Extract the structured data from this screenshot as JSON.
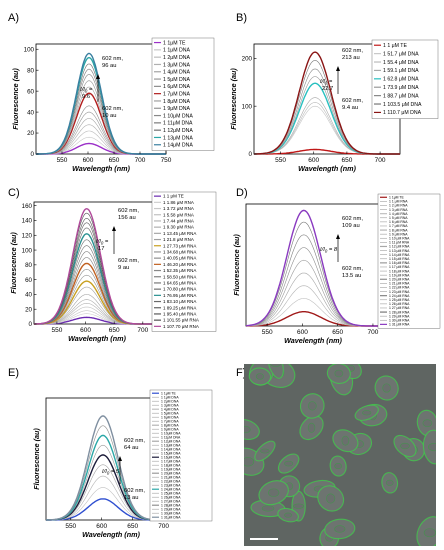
{
  "figure": {
    "panels": [
      {
        "letter": "A)",
        "ylabel": "Fluorescence (au)",
        "xlabel": "Wavelength (nm)",
        "xlim": [
          500,
          750
        ],
        "ylim": [
          0,
          105
        ],
        "xticks": [
          550,
          600,
          650,
          700,
          750
        ],
        "yticks": [
          0,
          20,
          40,
          60,
          80,
          100
        ],
        "annotations": {
          "top": [
            "602 nm,",
            "96 au"
          ],
          "ratio": [
            "I/I",
            "0",
            " ="
          ],
          "ratio_value": "9.6",
          "bottom": [
            "602 nm,",
            "10 au"
          ]
        },
        "legend": [
          "1 1μM TE",
          "1 1μM DNA",
          "1 2μM DNA",
          "1 3μM DNA",
          "1 4μM DNA",
          "1 5μM DNA",
          "1 6μM DNA",
          "1 7μM DNA",
          "1 8μM DNA",
          "1 9μM DNA",
          "1 10μM DNA",
          "1 11μM DNA",
          "1 12μM DNA",
          "1 13μM DNA",
          "1 14μM DNA"
        ]
      },
      {
        "letter": "B)",
        "ylabel": "Fluorescence (au)",
        "xlabel": "Wavelength (nm)",
        "xlim": [
          510,
          730
        ],
        "ylim": [
          0,
          230
        ],
        "xticks": [
          550,
          600,
          650,
          700
        ],
        "yticks": [
          0,
          100,
          200
        ],
        "annotations": {
          "top": [
            "602 nm,",
            "213 au"
          ],
          "ratio": [
            "I/I",
            "0",
            " ="
          ],
          "ratio_value": "22.7",
          "bottom": [
            "602 nm,",
            "9.4 au"
          ]
        },
        "legend": [
          "1 1 μM TE",
          "1 51.7 μM DNA",
          "1 55.4 μM DNA",
          "1 59.1 μM DNA",
          "1 62.8 μM DNA",
          "1 73.9 μM DNA",
          "1 88.7 μM DNA",
          "1 103.5 μM DNA",
          "1 110.7 μM DNA"
        ]
      },
      {
        "letter": "C)",
        "ylabel": "Fluorescence (au)",
        "xlabel": "Wavelength (nm)",
        "xlim": [
          510,
          730
        ],
        "ylim": [
          0,
          165
        ],
        "xticks": [
          550,
          600,
          650,
          700
        ],
        "yticks": [
          0,
          20,
          40,
          60,
          80,
          100,
          120,
          140,
          160
        ],
        "annotations": {
          "top": [
            "602 nm,",
            "156 au"
          ],
          "ratio": [
            "I/I",
            "0",
            " ="
          ],
          "ratio_value": "17",
          "bottom": [
            "602 nm,",
            "9 au"
          ]
        },
        "legend": [
          "1 1 μM TE",
          "1 1.86 μM RNA",
          "1 3.72 μM RNA",
          "1 5.58 μM RNA",
          "1 7.44 μM RNA",
          "1 9.30 μM RNA",
          "1 13.45 μM RNA",
          "1 21.8 μM RNA",
          "1 27.73 μM RNA",
          "1 34.68 μM RNA",
          "1 40.05 μM RNA",
          "1 46.20 μM RNA",
          "1 52.35 μM RNA",
          "1 58.50 μM RNA",
          "1 64.65 μM RNA",
          "1 70.80 μM RNA",
          "1 76.95 μM RNA",
          "1 83.10 μM RNA",
          "1 89.25 μM RNA",
          "1 95.40 μM RNA",
          "1 101.55 μM RNA",
          "1 107.70 μM RNA"
        ]
      },
      {
        "letter": "D)",
        "ylabel": "Fluorescence (au)",
        "xlabel": "Wavelength (nm)",
        "xlim": [
          520,
          710
        ],
        "ylim": [
          0,
          115
        ],
        "xticks": [
          550,
          600,
          650,
          700
        ],
        "yticks": [],
        "annotations": {
          "top": [
            "602 nm,",
            "109 au"
          ],
          "ratio": [
            "I/I",
            "0",
            " = 8"
          ],
          "ratio_value": "",
          "bottom": [
            "602 nm,",
            "13.5 au"
          ]
        },
        "legend": [
          "1 1μM TE",
          "1 1 μM RNA",
          "1 2 μM RNA",
          "1 3 μM RNA",
          "1 4 μM RNA",
          "1 5 μM RNA",
          "1 6 μM RNA",
          "1 7 μM RNA",
          "1 8 μM RNA",
          "1 9 μM RNA",
          "1 10 μM RNA",
          "1 11 μM RNA",
          "1 12 μM RNA",
          "1 13 μM RNA",
          "1 14 μM RNA",
          "1 15 μM RNA",
          "1 16 μM RNA",
          "1 17 μM RNA",
          "1 18 μM RNA",
          "1 19 μM RNA",
          "1 20 μM RNA",
          "1 21 μM RNA",
          "1 22 μM RNA",
          "1 23 μM RNA",
          "1 24 μM RNA",
          "1 25 μM RNA",
          "1 26 μM RNA",
          "1 27 μM RNA",
          "1 28 μM RNA",
          "1 29 μM RNA",
          "1 30 μM RNA",
          "1 31 μM RNA"
        ]
      },
      {
        "letter": "E)",
        "ylabel": "Fluorescence (au)",
        "xlabel": "Wavelength (nm)",
        "xlim": [
          510,
          720
        ],
        "ylim": [
          0,
          75
        ],
        "xticks": [
          550,
          600,
          650,
          700
        ],
        "yticks": [],
        "annotations": {
          "top": [
            "602 nm,",
            "64 au"
          ],
          "ratio": [
            "I/I",
            "0",
            " = 5"
          ],
          "ratio_value": "",
          "bottom": [
            "602 nm,",
            "13 au"
          ]
        },
        "legend": [
          "1 1μM TE",
          "1 1μM DNA",
          "1 2μM DNA",
          "1 3μM DNA",
          "1 4μM DNA",
          "1 5μM DNA",
          "1 6μM DNA",
          "1 7μM DNA",
          "1 8μM DNA",
          "1 9μM DNA",
          "1 10μM DNA",
          "1 11μM DNA",
          "1 12μM DNA",
          "1 13μM DNA",
          "1 14μM DNA",
          "1 15μM DNA",
          "1 16μM DNA",
          "1 17μM DNA",
          "1 18μM DNA",
          "1 19μM DNA",
          "1 20μM DNA",
          "1 21μM DNA",
          "1 22μM DNA",
          "1 23μM DNA",
          "1 24μM DNA",
          "1 25μM DNA",
          "1 26μM DNA",
          "1 27μM DNA",
          "1 28μM DNA",
          "1 29μM DNA",
          "1 30μM DNA",
          "1 31μM DNA"
        ]
      },
      {
        "letter": "F)"
      }
    ]
  },
  "chart_data": [
    {
      "type": "line",
      "peak_x": 602,
      "xlim": [
        500,
        750
      ],
      "ylim": [
        0,
        105
      ],
      "series": [
        {
          "legend_index": 0,
          "peak": 10,
          "color": "#9b30c8"
        },
        {
          "legend_index": 1,
          "peak": 16,
          "color": "#c8c8c8"
        },
        {
          "legend_index": 2,
          "peak": 22,
          "color": "#bcbcbc"
        },
        {
          "legend_index": 3,
          "peak": 28,
          "color": "#b0b0b0"
        },
        {
          "legend_index": 4,
          "peak": 34,
          "color": "#a4a4a4"
        },
        {
          "legend_index": 5,
          "peak": 40,
          "color": "#989898"
        },
        {
          "legend_index": 6,
          "peak": 46,
          "color": "#8c8c8c"
        },
        {
          "legend_index": 7,
          "peak": 58,
          "color": "#b21e1e"
        },
        {
          "legend_index": 8,
          "peak": 64,
          "color": "#a0a0a0"
        },
        {
          "legend_index": 9,
          "peak": 70,
          "color": "#949494"
        },
        {
          "legend_index": 10,
          "peak": 76,
          "color": "#888888"
        },
        {
          "legend_index": 11,
          "peak": 81,
          "color": "#7c7c7c"
        },
        {
          "legend_index": 12,
          "peak": 86,
          "color": "#707070"
        },
        {
          "legend_index": 13,
          "peak": 92,
          "color": "#2aa7a7"
        },
        {
          "legend_index": 14,
          "peak": 96,
          "color": "#3a7fa0"
        }
      ]
    },
    {
      "type": "line",
      "peak_x": 602,
      "xlim": [
        510,
        730
      ],
      "ylim": [
        0,
        230
      ],
      "series": [
        {
          "legend_index": 0,
          "peak": 9.4,
          "color": "#c01818"
        },
        {
          "legend_index": 1,
          "peak": 100,
          "color": "#c8c8c8"
        },
        {
          "legend_index": 2,
          "peak": 108,
          "color": "#bbbbbb"
        },
        {
          "legend_index": 3,
          "peak": 118,
          "color": "#aaaaaa"
        },
        {
          "legend_index": 4,
          "peak": 148,
          "color": "#28c0c0"
        },
        {
          "legend_index": 5,
          "peak": 162,
          "color": "#999999"
        },
        {
          "legend_index": 6,
          "peak": 178,
          "color": "#888888"
        },
        {
          "legend_index": 7,
          "peak": 196,
          "color": "#777777"
        },
        {
          "legend_index": 8,
          "peak": 213,
          "color": "#8a1414"
        }
      ]
    },
    {
      "type": "line",
      "peak_x": 602,
      "xlim": [
        510,
        730
      ],
      "ylim": [
        0,
        165
      ],
      "series": [
        {
          "legend_index": 0,
          "peak": 9,
          "color": "#6a2ab0"
        },
        {
          "legend_index": 1,
          "peak": 14,
          "color": "#d0d0d0"
        },
        {
          "legend_index": 2,
          "peak": 18,
          "color": "#c8c8c8"
        },
        {
          "legend_index": 3,
          "peak": 23,
          "color": "#c0c0c0"
        },
        {
          "legend_index": 4,
          "peak": 28,
          "color": "#b8b8b8"
        },
        {
          "legend_index": 5,
          "peak": 33,
          "color": "#b0b0b0"
        },
        {
          "legend_index": 6,
          "peak": 40,
          "color": "#a8a8a8"
        },
        {
          "legend_index": 7,
          "peak": 50,
          "color": "#a0a0a0"
        },
        {
          "legend_index": 8,
          "peak": 58,
          "color": "#c8a020"
        },
        {
          "legend_index": 9,
          "peak": 66,
          "color": "#989898"
        },
        {
          "legend_index": 10,
          "peak": 74,
          "color": "#909090"
        },
        {
          "legend_index": 11,
          "peak": 82,
          "color": "#c06020"
        },
        {
          "legend_index": 12,
          "peak": 90,
          "color": "#888888"
        },
        {
          "legend_index": 13,
          "peak": 98,
          "color": "#808080"
        },
        {
          "legend_index": 14,
          "peak": 106,
          "color": "#787878"
        },
        {
          "legend_index": 15,
          "peak": 114,
          "color": "#707070"
        },
        {
          "legend_index": 16,
          "peak": 122,
          "color": "#289090"
        },
        {
          "legend_index": 17,
          "peak": 130,
          "color": "#686868"
        },
        {
          "legend_index": 18,
          "peak": 137,
          "color": "#606060"
        },
        {
          "legend_index": 19,
          "peak": 143,
          "color": "#585858"
        },
        {
          "legend_index": 20,
          "peak": 150,
          "color": "#505050"
        },
        {
          "legend_index": 21,
          "peak": 156,
          "color": "#b04a9a"
        }
      ]
    },
    {
      "type": "line",
      "peak_x": 602,
      "xlim": [
        520,
        710
      ],
      "ylim": [
        0,
        115
      ],
      "series": [
        {
          "legend_index": 0,
          "peak": 13.5,
          "color": "#a01818"
        },
        {
          "legend_index": 4,
          "peak": 26,
          "color": "#c0c0c0"
        },
        {
          "legend_index": 8,
          "peak": 38,
          "color": "#b4b4b4"
        },
        {
          "legend_index": 12,
          "peak": 50,
          "color": "#a8a8a8"
        },
        {
          "legend_index": 16,
          "peak": 62,
          "color": "#9c9c9c"
        },
        {
          "legend_index": 20,
          "peak": 74,
          "color": "#909090"
        },
        {
          "legend_index": 24,
          "peak": 86,
          "color": "#848484"
        },
        {
          "legend_index": 28,
          "peak": 98,
          "color": "#787878"
        },
        {
          "legend_index": 31,
          "peak": 109,
          "color": "#8a3ac0"
        }
      ]
    },
    {
      "type": "line",
      "peak_x": 602,
      "xlim": [
        510,
        720
      ],
      "ylim": [
        0,
        75
      ],
      "series": [
        {
          "legend_index": 0,
          "peak": 13,
          "color": "#2f4fd0"
        },
        {
          "legend_index": 4,
          "peak": 20,
          "color": "#c0c0c0"
        },
        {
          "legend_index": 8,
          "peak": 27,
          "color": "#b4b4b4"
        },
        {
          "legend_index": 12,
          "peak": 34,
          "color": "#a8a8a8"
        },
        {
          "legend_index": 16,
          "peak": 40,
          "color": "#1c1c3a"
        },
        {
          "legend_index": 20,
          "peak": 46,
          "color": "#9c9c9c"
        },
        {
          "legend_index": 24,
          "peak": 52,
          "color": "#2aa7a7"
        },
        {
          "legend_index": 28,
          "peak": 58,
          "color": "#909090"
        },
        {
          "legend_index": 31,
          "peak": 64,
          "color": "#7f8fa0"
        }
      ]
    }
  ]
}
